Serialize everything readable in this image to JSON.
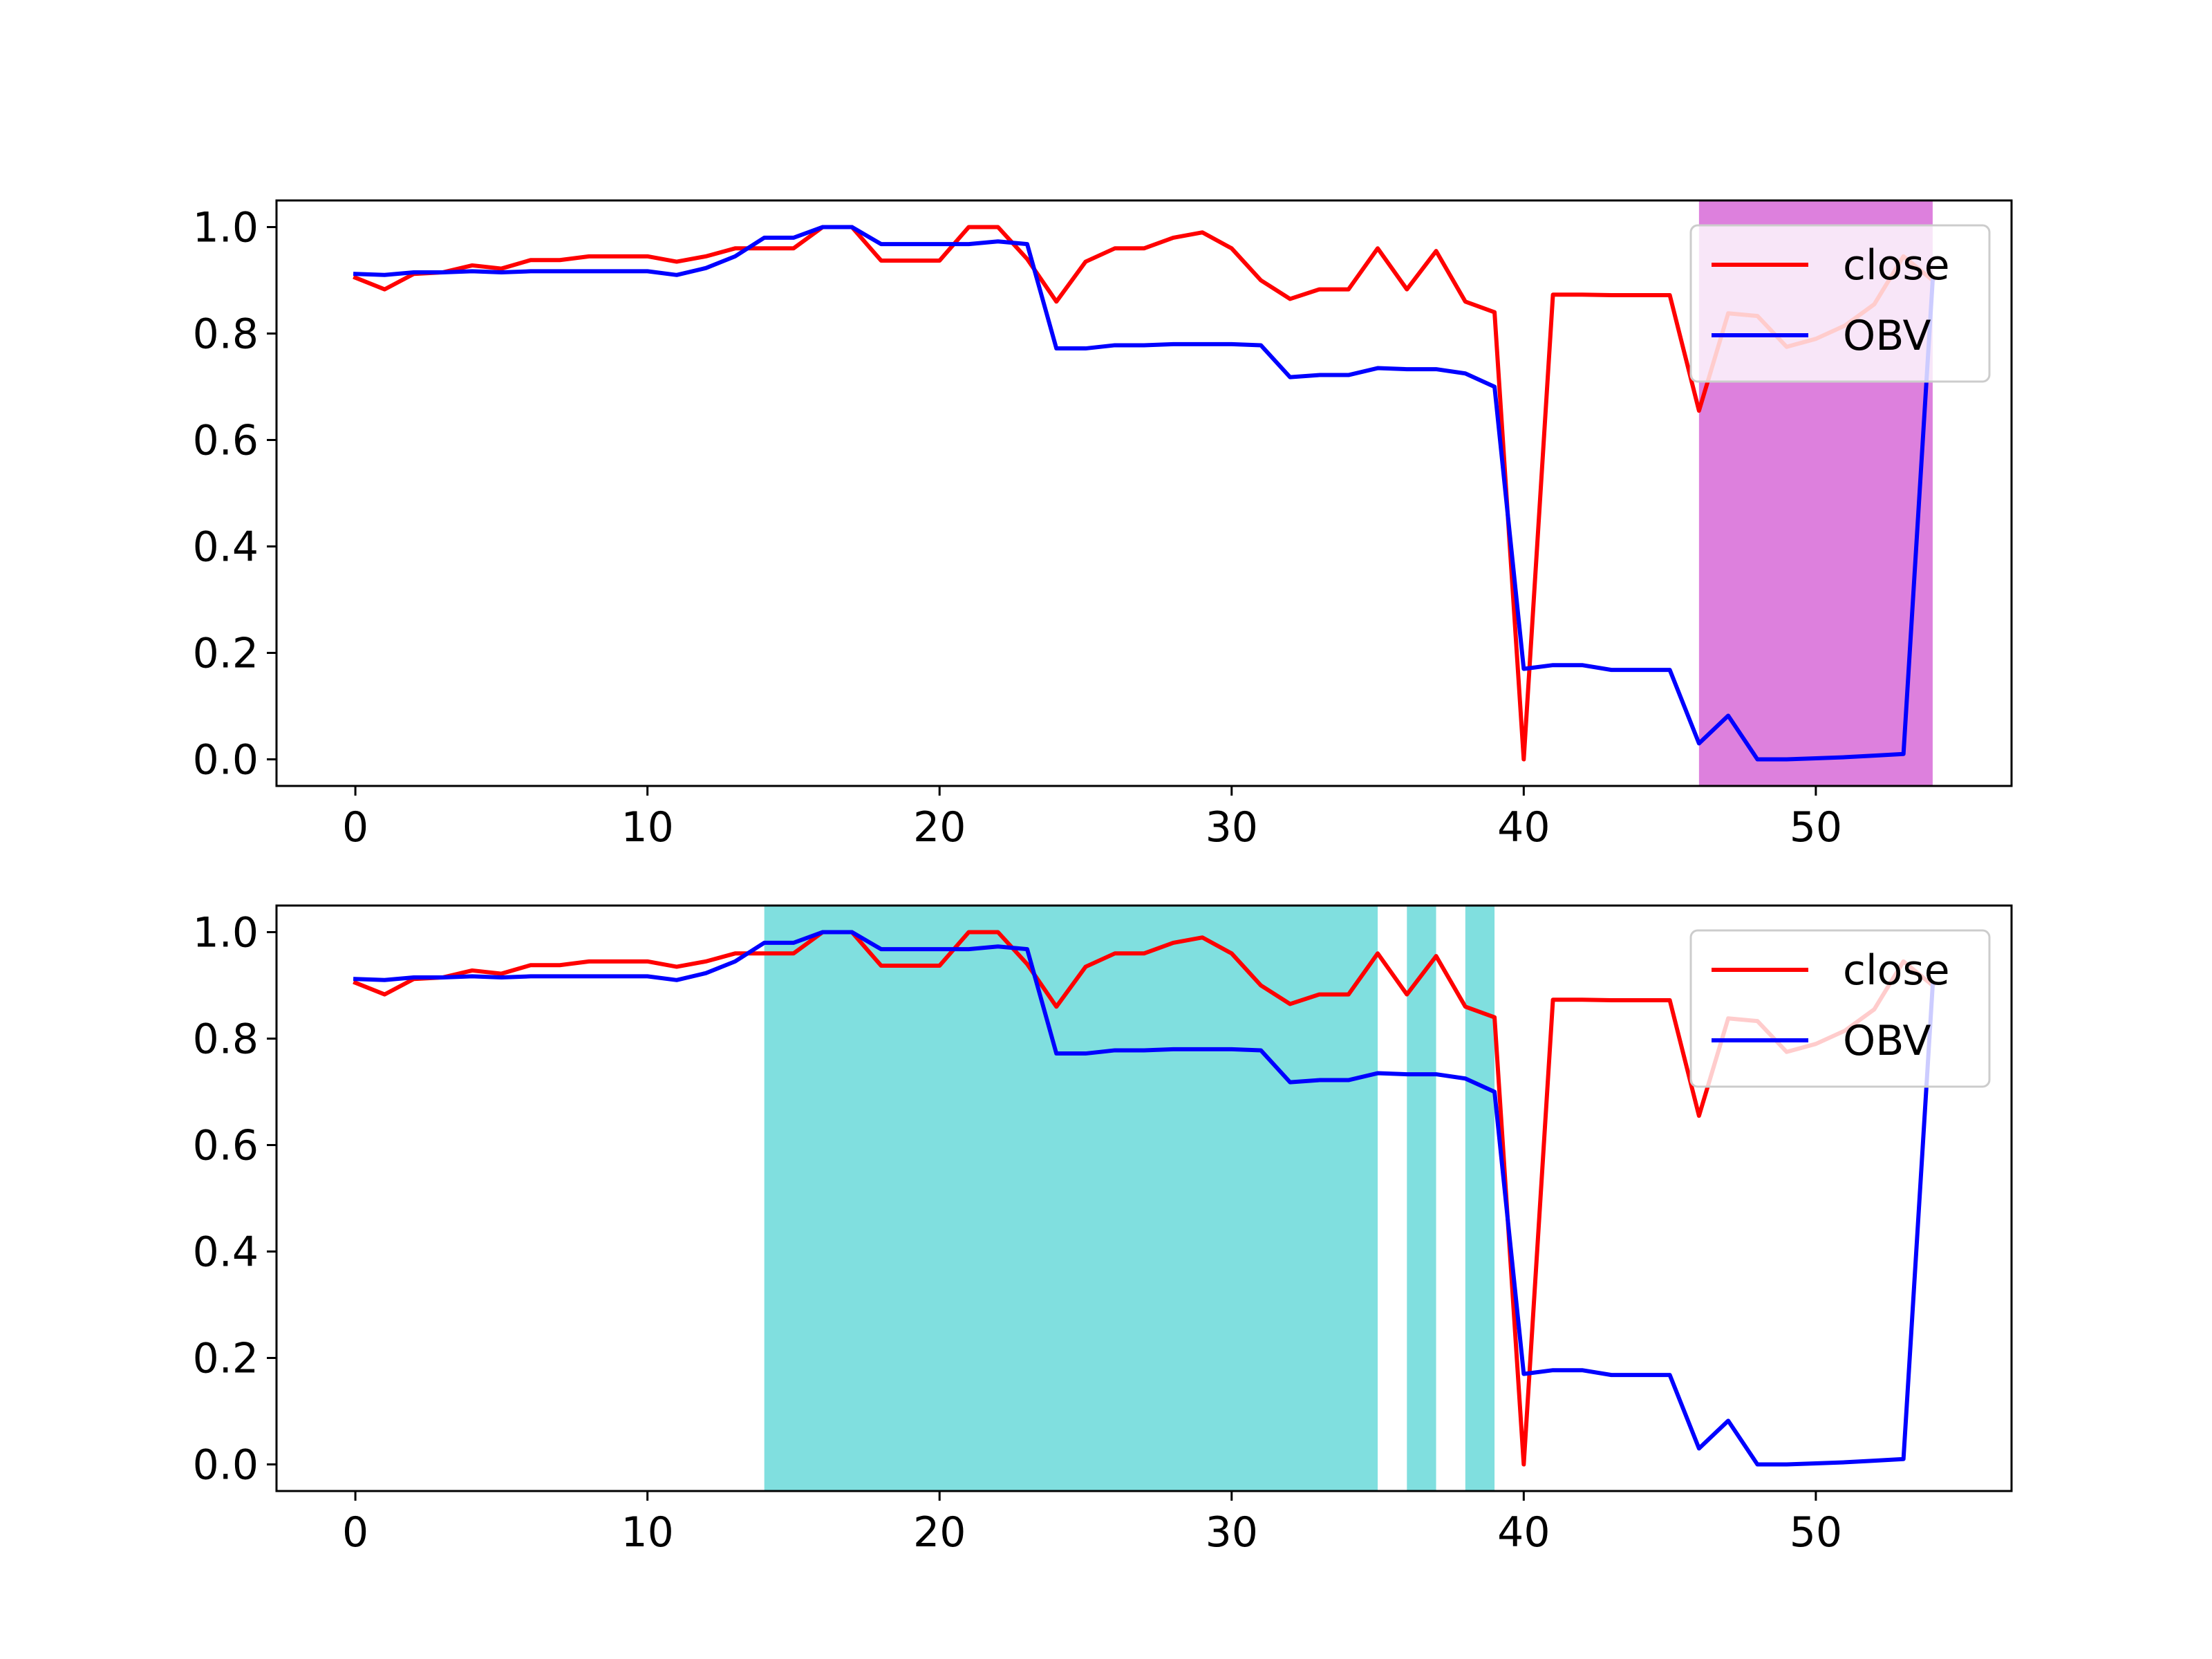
{
  "chart_data": [
    {
      "type": "line",
      "title": "",
      "xlabel": "",
      "ylabel": "",
      "xlim": [
        -2.7,
        56.7
      ],
      "ylim": [
        -0.05,
        1.05
      ],
      "xticks": [
        0,
        10,
        20,
        30,
        40,
        50
      ],
      "yticks": [
        0.0,
        0.2,
        0.4,
        0.6,
        0.8,
        1.0
      ],
      "xtick_labels": [
        "0",
        "10",
        "20",
        "30",
        "40",
        "50"
      ],
      "ytick_labels": [
        "0.0",
        "0.2",
        "0.4",
        "0.6",
        "0.8",
        "1.0"
      ],
      "grid": false,
      "legend": {
        "position": "upper right",
        "entries": [
          "close",
          "OBV"
        ]
      },
      "shaded_regions": [
        {
          "x_start": 46,
          "x_end": 54,
          "color": "#dd80dd"
        }
      ],
      "series": [
        {
          "name": "close",
          "color": "#ff0000",
          "x": [
            0,
            1,
            2,
            3,
            4,
            5,
            6,
            7,
            8,
            9,
            10,
            11,
            12,
            13,
            14,
            15,
            16,
            17,
            18,
            19,
            20,
            21,
            22,
            23,
            24,
            25,
            26,
            27,
            28,
            29,
            30,
            31,
            32,
            33,
            34,
            35,
            36,
            37,
            38,
            39,
            40,
            41,
            42,
            43,
            44,
            45,
            46,
            47,
            48,
            49,
            50,
            51,
            52,
            53,
            54
          ],
          "values": [
            0.905,
            0.883,
            0.912,
            0.915,
            0.928,
            0.922,
            0.938,
            0.938,
            0.945,
            0.945,
            0.945,
            0.935,
            0.945,
            0.96,
            0.96,
            0.96,
            1.0,
            1.0,
            0.937,
            0.937,
            0.937,
            1.0,
            1.0,
            0.94,
            0.86,
            0.935,
            0.96,
            0.96,
            0.98,
            0.99,
            0.96,
            0.9,
            0.865,
            0.883,
            0.883,
            0.96,
            0.883,
            0.955,
            0.86,
            0.84,
            0.0,
            0.873,
            0.873,
            0.872,
            0.872,
            0.872,
            0.655,
            0.838,
            0.833,
            0.775,
            0.79,
            0.815,
            0.855,
            0.945,
            0.9
          ]
        },
        {
          "name": "OBV",
          "color": "#0000ff",
          "x": [
            0,
            1,
            2,
            3,
            4,
            5,
            6,
            7,
            8,
            9,
            10,
            11,
            12,
            13,
            14,
            15,
            16,
            17,
            18,
            19,
            20,
            21,
            22,
            23,
            24,
            25,
            26,
            27,
            28,
            29,
            30,
            31,
            32,
            33,
            34,
            35,
            36,
            37,
            38,
            39,
            40,
            41,
            42,
            43,
            44,
            45,
            46,
            47,
            48,
            49,
            50,
            51,
            52,
            53,
            54
          ],
          "values": [
            0.912,
            0.91,
            0.915,
            0.915,
            0.917,
            0.915,
            0.917,
            0.917,
            0.917,
            0.917,
            0.917,
            0.91,
            0.923,
            0.945,
            0.98,
            0.98,
            1.0,
            1.0,
            0.968,
            0.968,
            0.968,
            0.968,
            0.973,
            0.968,
            0.772,
            0.772,
            0.778,
            0.778,
            0.78,
            0.78,
            0.78,
            0.778,
            0.718,
            0.722,
            0.722,
            0.735,
            0.733,
            0.733,
            0.725,
            0.7,
            0.17,
            0.177,
            0.177,
            0.168,
            0.168,
            0.168,
            0.03,
            0.082,
            0.0,
            0.0,
            0.002,
            0.004,
            0.007,
            0.01,
            0.9
          ]
        }
      ]
    },
    {
      "type": "line",
      "title": "",
      "xlabel": "",
      "ylabel": "",
      "xlim": [
        -2.7,
        56.7
      ],
      "ylim": [
        -0.05,
        1.05
      ],
      "xticks": [
        0,
        10,
        20,
        30,
        40,
        50
      ],
      "yticks": [
        0.0,
        0.2,
        0.4,
        0.6,
        0.8,
        1.0
      ],
      "xtick_labels": [
        "0",
        "10",
        "20",
        "30",
        "40",
        "50"
      ],
      "ytick_labels": [
        "0.0",
        "0.2",
        "0.4",
        "0.6",
        "0.8",
        "1.0"
      ],
      "grid": false,
      "legend": {
        "position": "upper right",
        "entries": [
          "close",
          "OBV"
        ]
      },
      "shaded_regions": [
        {
          "x_start": 14,
          "x_end": 35,
          "color": "#80dfdf"
        },
        {
          "x_start": 36,
          "x_end": 37,
          "color": "#80dfdf"
        },
        {
          "x_start": 38,
          "x_end": 39,
          "color": "#80dfdf"
        }
      ],
      "series": [
        {
          "name": "close",
          "color": "#ff0000",
          "x": [
            0,
            1,
            2,
            3,
            4,
            5,
            6,
            7,
            8,
            9,
            10,
            11,
            12,
            13,
            14,
            15,
            16,
            17,
            18,
            19,
            20,
            21,
            22,
            23,
            24,
            25,
            26,
            27,
            28,
            29,
            30,
            31,
            32,
            33,
            34,
            35,
            36,
            37,
            38,
            39,
            40,
            41,
            42,
            43,
            44,
            45,
            46,
            47,
            48,
            49,
            50,
            51,
            52,
            53,
            54
          ],
          "values": [
            0.905,
            0.883,
            0.912,
            0.915,
            0.928,
            0.922,
            0.938,
            0.938,
            0.945,
            0.945,
            0.945,
            0.935,
            0.945,
            0.96,
            0.96,
            0.96,
            1.0,
            1.0,
            0.937,
            0.937,
            0.937,
            1.0,
            1.0,
            0.94,
            0.86,
            0.935,
            0.96,
            0.96,
            0.98,
            0.99,
            0.96,
            0.9,
            0.865,
            0.883,
            0.883,
            0.96,
            0.883,
            0.955,
            0.86,
            0.84,
            0.0,
            0.873,
            0.873,
            0.872,
            0.872,
            0.872,
            0.655,
            0.838,
            0.833,
            0.775,
            0.79,
            0.815,
            0.855,
            0.945,
            0.9
          ]
        },
        {
          "name": "OBV",
          "color": "#0000ff",
          "x": [
            0,
            1,
            2,
            3,
            4,
            5,
            6,
            7,
            8,
            9,
            10,
            11,
            12,
            13,
            14,
            15,
            16,
            17,
            18,
            19,
            20,
            21,
            22,
            23,
            24,
            25,
            26,
            27,
            28,
            29,
            30,
            31,
            32,
            33,
            34,
            35,
            36,
            37,
            38,
            39,
            40,
            41,
            42,
            43,
            44,
            45,
            46,
            47,
            48,
            49,
            50,
            51,
            52,
            53,
            54
          ],
          "values": [
            0.912,
            0.91,
            0.915,
            0.915,
            0.917,
            0.915,
            0.917,
            0.917,
            0.917,
            0.917,
            0.917,
            0.91,
            0.923,
            0.945,
            0.98,
            0.98,
            1.0,
            1.0,
            0.968,
            0.968,
            0.968,
            0.968,
            0.973,
            0.968,
            0.772,
            0.772,
            0.778,
            0.778,
            0.78,
            0.78,
            0.78,
            0.778,
            0.718,
            0.722,
            0.722,
            0.735,
            0.733,
            0.733,
            0.725,
            0.7,
            0.17,
            0.177,
            0.177,
            0.168,
            0.168,
            0.168,
            0.03,
            0.082,
            0.0,
            0.0,
            0.002,
            0.004,
            0.007,
            0.01,
            0.9
          ]
        }
      ]
    }
  ]
}
